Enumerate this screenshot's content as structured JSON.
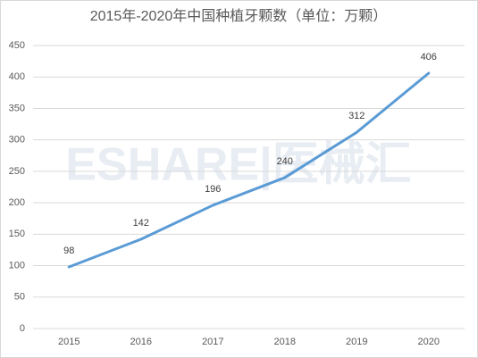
{
  "chart_data": {
    "type": "line",
    "title": "2015年-2020年中国种植牙颗数（单位：万颗）",
    "watermark": "ESHARE|医械汇",
    "categories": [
      "2015",
      "2016",
      "2017",
      "2018",
      "2019",
      "2020"
    ],
    "values": [
      98,
      142,
      196,
      240,
      312,
      406
    ],
    "color": "#5b9bd5",
    "ylim": [
      0,
      450
    ],
    "yticks": [
      0,
      50,
      100,
      150,
      200,
      250,
      300,
      350,
      400,
      450
    ],
    "grid": true
  }
}
